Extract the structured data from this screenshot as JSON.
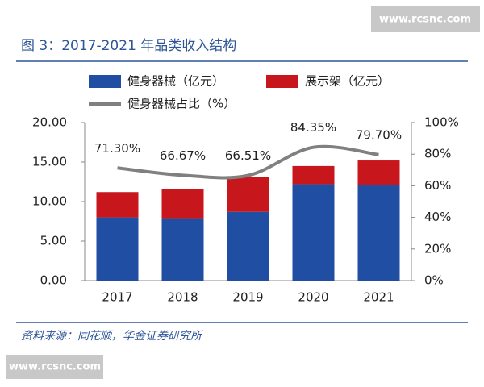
{
  "watermark": "www.rcsnc.com",
  "source": "资料来源：同花顺，华金证券研究所",
  "chart_data": {
    "type": "bar-line",
    "title": "图 3：2017-2021 年品类收入结构",
    "categories": [
      "2017",
      "2018",
      "2019",
      "2020",
      "2021"
    ],
    "series": [
      {
        "name": "健身器械（亿元）",
        "color": "#1f4ea3",
        "type": "bar",
        "values": [
          8.0,
          7.8,
          8.7,
          12.2,
          12.1
        ]
      },
      {
        "name": "展示架（亿元）",
        "color": "#c8161d",
        "type": "bar",
        "values": [
          3.2,
          3.8,
          4.4,
          2.3,
          3.1
        ]
      },
      {
        "name": "健身器械占比（%）",
        "color": "#808080",
        "type": "line",
        "axis": "y2",
        "values": [
          71.3,
          66.67,
          66.51,
          84.35,
          79.7
        ],
        "value_labels": [
          "71.30%",
          "66.67%",
          "66.51%",
          "84.35%",
          "79.70%"
        ]
      }
    ],
    "stacked": true,
    "ylim": [
      0,
      20
    ],
    "yticks": [
      {
        "value": 0,
        "label": "0.00"
      },
      {
        "value": 5,
        "label": "5.00"
      },
      {
        "value": 10,
        "label": "10.00"
      },
      {
        "value": 15,
        "label": "15.00"
      },
      {
        "value": 20,
        "label": "20.00"
      }
    ],
    "y2lim": [
      0,
      100
    ],
    "y2ticks": [
      {
        "value": 0,
        "label": "0%"
      },
      {
        "value": 20,
        "label": "20%"
      },
      {
        "value": 40,
        "label": "40%"
      },
      {
        "value": 60,
        "label": "60%"
      },
      {
        "value": 80,
        "label": "80%"
      },
      {
        "value": 100,
        "label": "100%"
      }
    ]
  }
}
